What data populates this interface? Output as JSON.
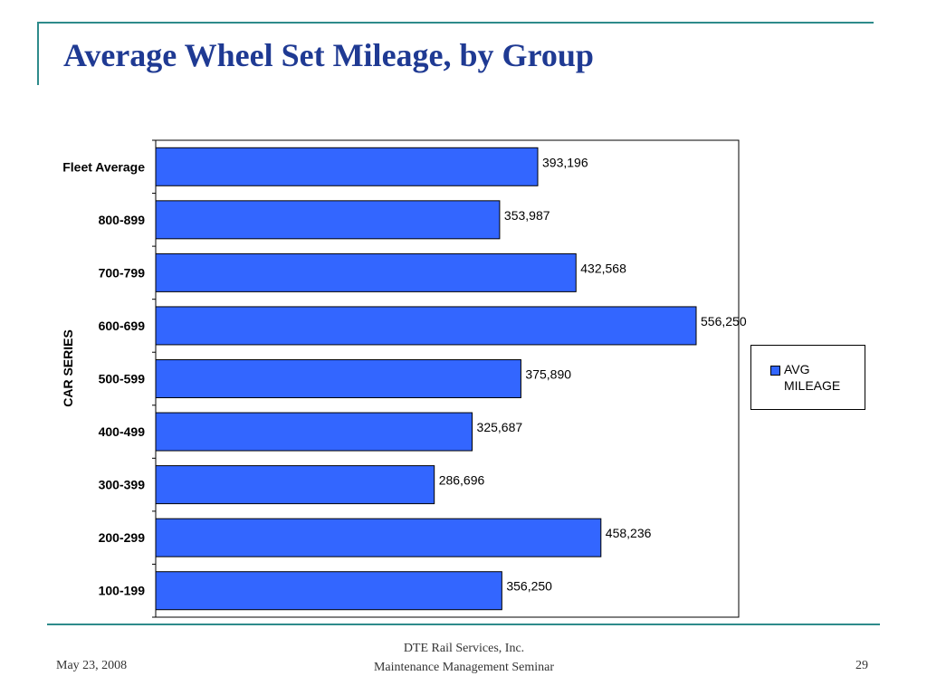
{
  "slide": {
    "title": "Average Wheel Set Mileage, by Group",
    "footer": {
      "date": "May 23, 2008",
      "company": "DTE Rail Services, Inc.",
      "event": "Maintenance Management Seminar",
      "page_number": "29"
    }
  },
  "chart_data": {
    "type": "bar",
    "orientation": "horizontal",
    "categories": [
      "Fleet Average",
      "800-899",
      "700-799",
      "600-699",
      "500-599",
      "400-499",
      "300-399",
      "200-299",
      "100-199"
    ],
    "values": [
      393196,
      353987,
      432568,
      556250,
      375890,
      325687,
      286696,
      458236,
      356250
    ],
    "value_labels": [
      "393,196",
      "353,987",
      "432,568",
      "556,250",
      "375,890",
      "325,687",
      "286,696",
      "458,236",
      "356,250"
    ],
    "ylabel": "CAR SERIES",
    "series": [
      {
        "name": "AVG MILEAGE"
      }
    ],
    "legend": "right",
    "grid": false,
    "bar_color": "#3366ff"
  }
}
